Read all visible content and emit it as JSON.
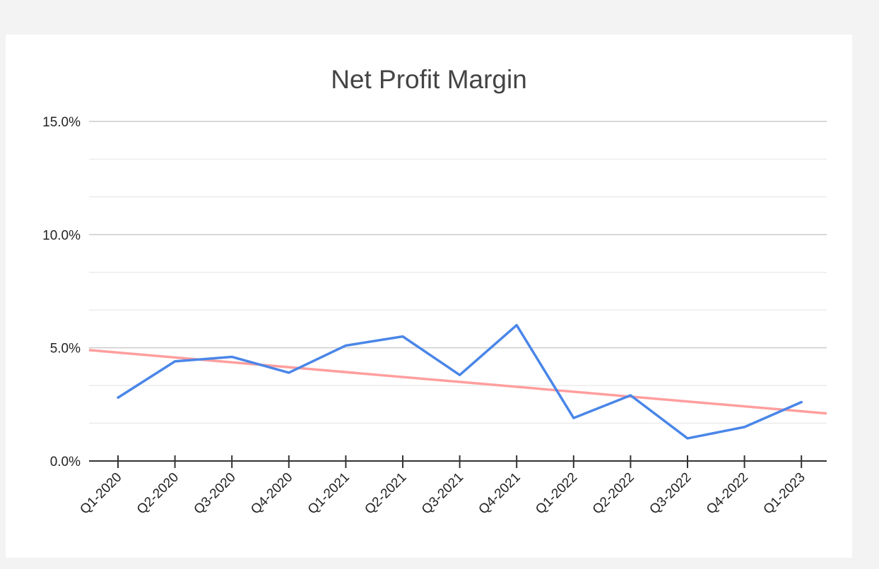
{
  "chart_data": {
    "type": "line",
    "title": "Net Profit Margin",
    "xlabel": "",
    "ylabel": "",
    "categories": [
      "Q1-2020",
      "Q2-2020",
      "Q3-2020",
      "Q4-2020",
      "Q1-2021",
      "Q2-2021",
      "Q3-2021",
      "Q4-2021",
      "Q1-2022",
      "Q2-2022",
      "Q3-2022",
      "Q4-2022",
      "Q1-2023"
    ],
    "series": [
      {
        "values": [
          2.8,
          4.4,
          4.6,
          3.9,
          5.1,
          5.5,
          3.8,
          6.0,
          1.9,
          2.9,
          1.0,
          1.5,
          2.6
        ],
        "color": "#4a86e8"
      }
    ],
    "trendline": {
      "type": "linear",
      "start": 4.9,
      "end": 2.1,
      "color": "#ff9e9e"
    },
    "ylim": [
      0,
      15
    ],
    "y_ticks": [
      "0.0%",
      "5.0%",
      "10.0%",
      "15.0%"
    ],
    "y_tick_values": [
      0,
      5,
      10,
      15
    ],
    "minor_gridlines": true,
    "grid": true,
    "legend": "none"
  }
}
